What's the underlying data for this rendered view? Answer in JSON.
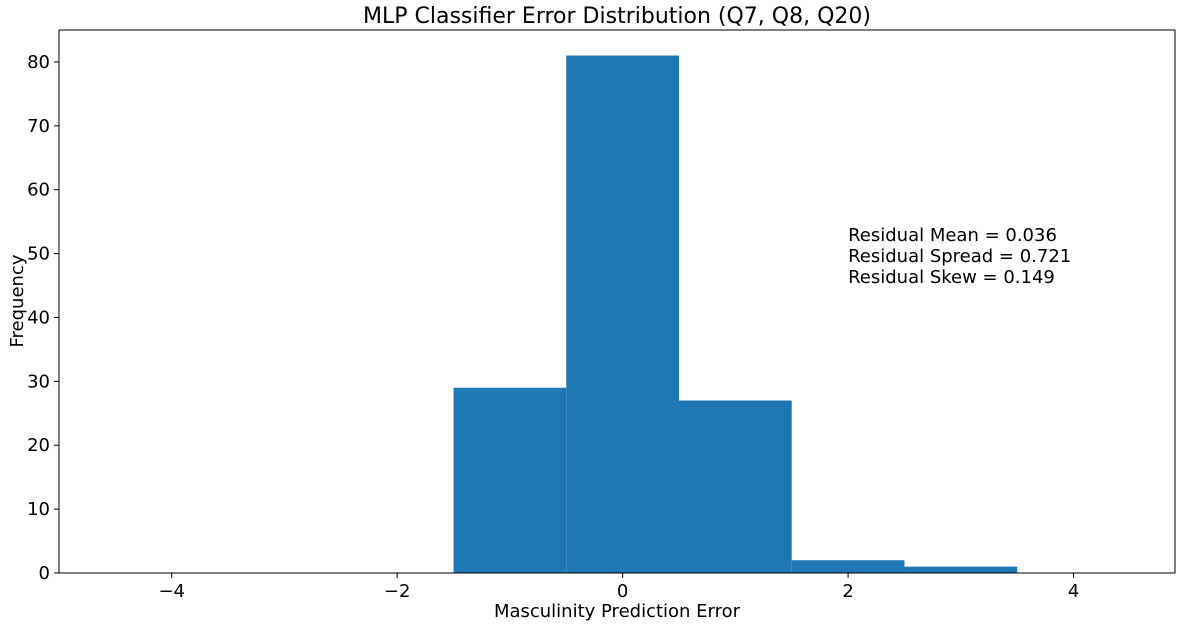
{
  "chart_data": {
    "type": "bar",
    "title": "MLP Classifier Error Distribution (Q7, Q8, Q20)",
    "xlabel": "Masculinity Prediction Error",
    "ylabel": "Frequency",
    "xlim": [
      -5,
      4.9
    ],
    "ylim": [
      0,
      85
    ],
    "x_ticks": [
      -4,
      -2,
      0,
      2,
      4
    ],
    "y_ticks": [
      0,
      10,
      20,
      30,
      40,
      50,
      60,
      70,
      80
    ],
    "bins": [
      {
        "x0": -1.5,
        "x1": -0.5,
        "value": 29
      },
      {
        "x0": -0.5,
        "x1": 0.5,
        "value": 81
      },
      {
        "x0": 0.5,
        "x1": 1.5,
        "value": 27
      },
      {
        "x0": 1.5,
        "x1": 2.5,
        "value": 2
      },
      {
        "x0": 2.5,
        "x1": 3.5,
        "value": 1
      }
    ],
    "bar_color": "#1f77b4",
    "grid": false,
    "annotations": {
      "x": 2.0,
      "y": 52,
      "lines": [
        "Residual Mean = 0.036",
        "Residual Spread = 0.721",
        "Residual Skew = 0.149"
      ]
    }
  }
}
